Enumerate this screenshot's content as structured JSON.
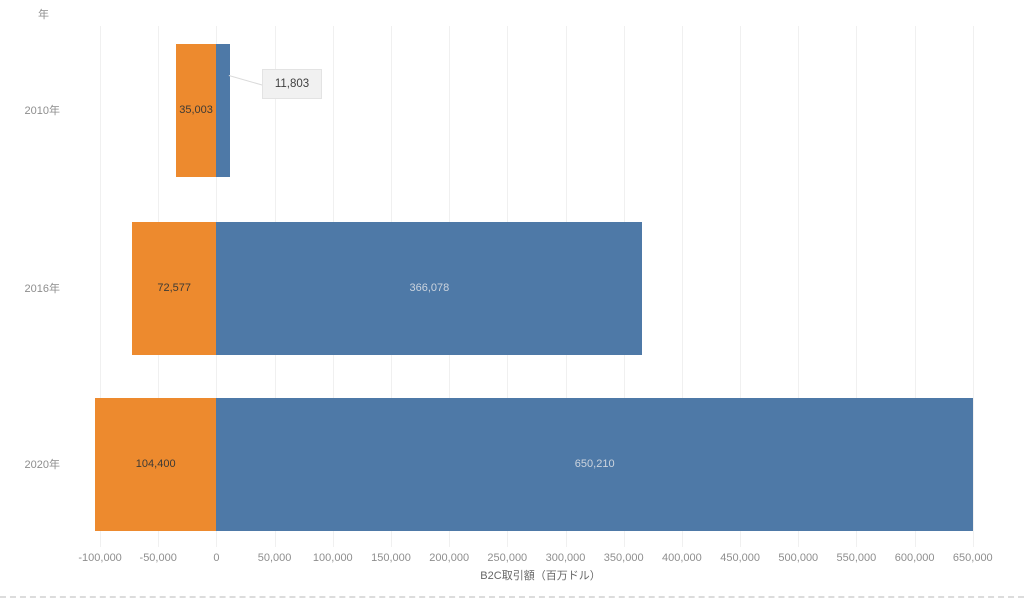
{
  "chart_data": {
    "type": "bar",
    "orientation": "horizontal_diverging",
    "y_axis_header": "年",
    "x_axis_title": "B2C取引額（百万ドル）",
    "categories": [
      "2010年",
      "2016年",
      "2020年"
    ],
    "series": [
      {
        "name": "left",
        "direction": "left",
        "color": "#ED8A2E",
        "label_color": "#3d3a35",
        "values": [
          35003,
          72577,
          104400
        ],
        "labels": [
          "35,003",
          "72,577",
          "104,400"
        ]
      },
      {
        "name": "right",
        "direction": "right",
        "color": "#4E79A7",
        "label_color": "#ccd4de",
        "values": [
          11803,
          366078,
          650210
        ],
        "labels": [
          "11,803",
          "366,078",
          "650,210"
        ]
      }
    ],
    "callout": {
      "row": 0,
      "series": "right",
      "label": "11,803"
    },
    "x_ticks": [
      -100000,
      -50000,
      0,
      50000,
      100000,
      150000,
      200000,
      250000,
      300000,
      350000,
      400000,
      450000,
      500000,
      550000,
      600000,
      650000
    ],
    "x_tick_labels": [
      "-100,000",
      "-50,000",
      "0",
      "50,000",
      "100,000",
      "150,000",
      "200,000",
      "250,000",
      "300,000",
      "350,000",
      "400,000",
      "450,000",
      "500,000",
      "550,000",
      "600,000",
      "650,000"
    ],
    "xlim": [
      -137000,
      694000
    ],
    "grid": true,
    "legend": "none",
    "colors": {
      "gridline": "#f0f0f0",
      "tick_label": "#8e8e8e",
      "category_label": "#8e8e8e",
      "axis_title": "#666666",
      "callout_bg": "#f1f1f1",
      "callout_border": "#e3e3e3",
      "callout_text": "#3f3f3f",
      "leader_line": "#dadada"
    }
  }
}
